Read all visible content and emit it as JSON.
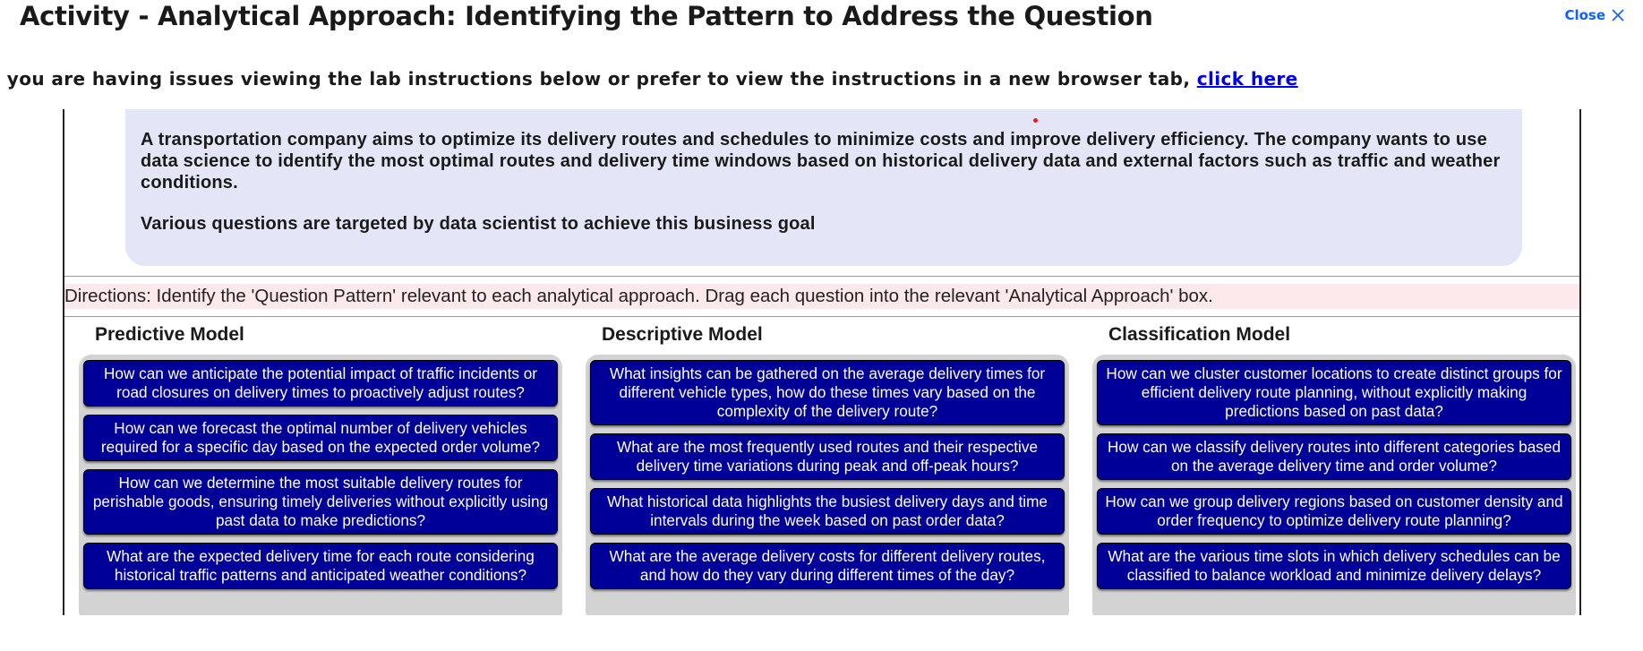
{
  "header": {
    "title": "Activity - Analytical Approach: Identifying the Pattern to Address the Question",
    "close_label": "Close"
  },
  "notice": {
    "text": "case you are having issues viewing the lab instructions below or prefer to view the instructions in a new browser tab, ",
    "link_label": "click here"
  },
  "scenario": {
    "paragraph_1": "A transportation company aims to optimize its delivery routes and schedules to minimize costs and improve delivery efficiency. The company wants to use data science to identify the most optimal routes and delivery time windows based on historical delivery data and external factors such as traffic and weather conditions.",
    "paragraph_2": "Various questions are targeted by data scientist to achieve this business goal"
  },
  "directions": "Directions: Identify the 'Question Pattern' relevant to each analytical approach. Drag each question into the relevant 'Analytical Approach' box.",
  "columns": [
    {
      "heading": "Predictive Model",
      "cards": [
        "How can we anticipate the potential impact of traffic incidents or road closures on delivery times to proactively adjust routes?",
        "How can we forecast the optimal number of delivery vehicles required for a specific day based on the expected order volume?",
        "How can we determine the most suitable delivery routes for perishable goods, ensuring timely deliveries without explicitly using past data to make predictions?",
        "What are the expected delivery time for each route considering historical traffic patterns and anticipated weather conditions?"
      ]
    },
    {
      "heading": "Descriptive Model",
      "cards": [
        "What insights can be gathered on the average delivery times for different vehicle types, how do these times vary based on the complexity of the delivery route?",
        "What are the most frequently used routes and their respective delivery time variations during peak and off-peak hours?",
        "What historical data highlights the busiest delivery days and time intervals during the week based on past order data?",
        "What are the average delivery costs for different delivery routes, and how do they vary during different times of the day?"
      ]
    },
    {
      "heading": "Classification Model",
      "cards": [
        "How can we cluster customer locations to create distinct groups for efficient delivery route planning, without explicitly making predictions based on past data?",
        "How can we classify delivery routes into different categories based on the average delivery time and order volume?",
        "How can we group delivery regions based on customer density and order frequency to optimize delivery route planning?",
        "What are the various time slots in which delivery schedules can be classified to balance workload and minimize delivery delays?"
      ]
    }
  ],
  "colors": {
    "card_bg": "#000099",
    "column_bg": "#d3d3d3",
    "scenario_bg": "#e4e5f7",
    "directions_bg": "#fde8ec",
    "close_color": "#0f62fe",
    "link_color": "#0000ee"
  },
  "icons": {
    "close": "close-icon"
  }
}
